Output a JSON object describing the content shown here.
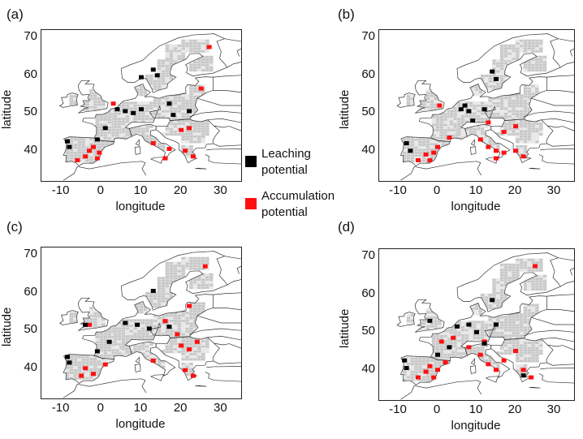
{
  "colors": {
    "leaching": "#000000",
    "accumulation": "#ff1010",
    "land": "#c8c8c8",
    "landGrid": "#e9e9e9",
    "coast": "#333333"
  },
  "axes": {
    "xlabel": "longitude",
    "ylabel": "latitude",
    "xticks": [
      "-10",
      "0",
      "10",
      "20",
      "30"
    ],
    "yticks": [
      "70",
      "60",
      "50",
      "40"
    ],
    "xlim": [
      -15,
      35
    ],
    "ylim": [
      32,
      72
    ]
  },
  "legend": {
    "items": [
      {
        "label_line1": "Leaching",
        "label_line2": "potential",
        "color": "#000000"
      },
      {
        "label_line1": "Accumulation",
        "label_line2": "potential",
        "color": "#ff1010"
      }
    ]
  },
  "panels": [
    {
      "letter": "(a)"
    },
    {
      "letter": "(b)"
    },
    {
      "letter": "(c)"
    },
    {
      "letter": "(d)"
    }
  ],
  "chart_data": {
    "type": "heatmap",
    "region": "Europe",
    "xlabel": "longitude",
    "ylabel": "latitude",
    "xlim": [
      -15,
      35
    ],
    "ylim": [
      32,
      72
    ],
    "categories": [
      "Leaching potential",
      "Accumulation potential"
    ],
    "panels": [
      {
        "letter": "(a)",
        "leaching_hotspots": [
          [
            -8.5,
            42.5
          ],
          [
            -8,
            41
          ],
          [
            -1,
            43
          ],
          [
            1,
            46
          ],
          [
            4,
            51
          ],
          [
            6,
            50.5
          ],
          [
            8,
            50
          ],
          [
            10,
            51
          ],
          [
            18,
            49.5
          ],
          [
            22,
            50.5
          ],
          [
            13,
            61.5
          ],
          [
            14,
            60
          ],
          [
            10,
            59.5
          ],
          [
            17,
            52.5
          ]
        ],
        "accumulation_hotspots": [
          [
            -3,
            40
          ],
          [
            -4,
            38.5
          ],
          [
            -1,
            38
          ],
          [
            -6,
            37.5
          ],
          [
            -2,
            41
          ],
          [
            -0.5,
            39.5
          ],
          [
            3,
            52.5
          ],
          [
            13,
            42
          ],
          [
            17,
            40.5
          ],
          [
            16,
            38
          ],
          [
            21,
            40
          ],
          [
            23,
            38.5
          ],
          [
            20,
            45.5
          ],
          [
            22,
            46
          ],
          [
            25,
            56.5
          ],
          [
            27,
            67.5
          ]
        ]
      },
      {
        "letter": "(b)",
        "leaching_hotspots": [
          [
            -8,
            42
          ],
          [
            -7,
            40
          ],
          [
            7,
            52
          ],
          [
            8,
            50.5
          ],
          [
            12,
            51
          ],
          [
            14,
            61
          ],
          [
            15,
            59
          ],
          [
            9,
            48
          ],
          [
            6,
            51
          ]
        ],
        "accumulation_hotspots": [
          [
            -3,
            39
          ],
          [
            -5,
            37.5
          ],
          [
            -1,
            39.5
          ],
          [
            -2,
            37.5
          ],
          [
            0,
            41
          ],
          [
            3,
            43.5
          ],
          [
            0.5,
            52
          ],
          [
            11,
            43
          ],
          [
            13,
            41
          ],
          [
            15,
            40
          ],
          [
            17,
            39.5
          ],
          [
            15,
            38
          ],
          [
            20,
            40
          ],
          [
            22,
            38.5
          ],
          [
            17,
            45
          ],
          [
            20,
            46.5
          ],
          [
            13,
            47.5
          ]
        ]
      },
      {
        "letter": "(c)",
        "leaching_hotspots": [
          [
            -8.5,
            43
          ],
          [
            -8,
            41.5
          ],
          [
            -1,
            44.5
          ],
          [
            6,
            52
          ],
          [
            9,
            51.5
          ],
          [
            12,
            50.5
          ],
          [
            17,
            51
          ],
          [
            -4,
            51.5
          ],
          [
            13,
            60.5
          ],
          [
            2,
            47
          ]
        ],
        "accumulation_hotspots": [
          [
            -4,
            40
          ],
          [
            -2,
            38.5
          ],
          [
            1,
            41
          ],
          [
            -5,
            38
          ],
          [
            -3,
            51.5
          ],
          [
            13,
            42
          ],
          [
            20,
            46
          ],
          [
            22,
            45
          ],
          [
            24,
            47
          ],
          [
            21,
            39.5
          ],
          [
            23,
            38
          ],
          [
            19,
            49
          ],
          [
            26,
            67
          ],
          [
            22,
            56.5
          ],
          [
            16,
            52.5
          ]
        ]
      },
      {
        "letter": "(d)",
        "leaching_hotspots": [
          [
            -8.5,
            42.5
          ],
          [
            -8,
            40.5
          ],
          [
            0,
            44
          ],
          [
            3,
            46
          ],
          [
            5,
            51.5
          ],
          [
            8,
            52
          ],
          [
            10,
            50
          ],
          [
            15,
            52
          ],
          [
            -2,
            53
          ],
          [
            14,
            58.5
          ],
          [
            22,
            38.5
          ],
          [
            12,
            47
          ]
        ],
        "accumulation_hotspots": [
          [
            -3,
            39.5
          ],
          [
            -5,
            38
          ],
          [
            -1,
            38
          ],
          [
            -2,
            41
          ],
          [
            0,
            40
          ],
          [
            2,
            42
          ],
          [
            1,
            47.5
          ],
          [
            4,
            48.5
          ],
          [
            8,
            46
          ],
          [
            11,
            44
          ],
          [
            13,
            41.5
          ],
          [
            15,
            40
          ],
          [
            17,
            42.5
          ],
          [
            20,
            45
          ],
          [
            22,
            40
          ],
          [
            24,
            38
          ],
          [
            25,
            67.5
          ],
          [
            12,
            47.5
          ]
        ]
      }
    ]
  }
}
